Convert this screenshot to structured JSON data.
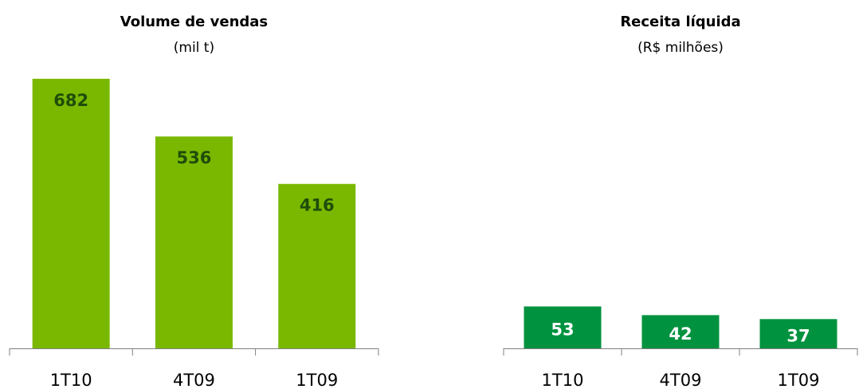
{
  "chart_data": [
    {
      "type": "bar",
      "title": "Volume de vendas",
      "subtitle": "(mil t)",
      "categories": [
        "1T10",
        "4T09",
        "1T09"
      ],
      "values": [
        682,
        536,
        416
      ],
      "color": "#7ab800",
      "label_color": "#1e4d0a",
      "ylim": [
        0,
        720
      ]
    },
    {
      "type": "bar",
      "title": "Receita líquida",
      "subtitle": "(R$ milhões)",
      "categories": [
        "1T10",
        "4T09",
        "1T09"
      ],
      "values": [
        53,
        42,
        37
      ],
      "color": "#00923f",
      "label_color": "#ffffff",
      "ylim": [
        0,
        360
      ]
    }
  ]
}
